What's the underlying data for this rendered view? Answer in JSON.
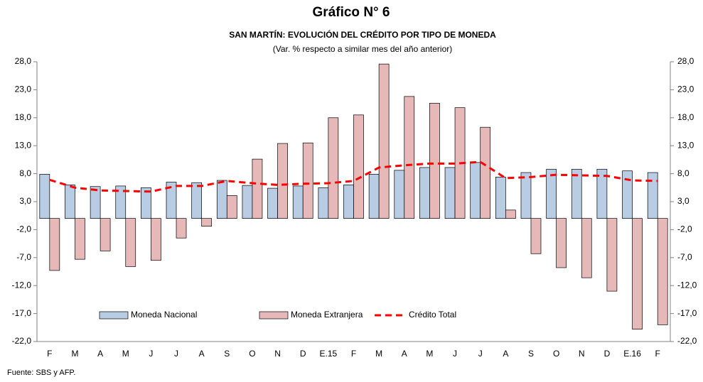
{
  "chart_data": {
    "type": "bar_line",
    "title": "Gráfico N° 6",
    "subtitle": "SAN MARTÍN: EVOLUCIÓN DEL CRÉDITO POR TIPO DE MONEDA",
    "note": "(Var. % respecto a similar mes del año anterior)",
    "source": "Fuente: SBS y AFP.",
    "categories": [
      "F",
      "M",
      "A",
      "M",
      "J",
      "J",
      "A",
      "S",
      "O",
      "N",
      "D",
      "E.15",
      "F",
      "M",
      "A",
      "M",
      "J",
      "J",
      "A",
      "S",
      "O",
      "N",
      "D",
      "E.16",
      "F"
    ],
    "series": [
      {
        "name": "Moneda Nacional",
        "type": "bar",
        "color": "#b8cce4",
        "values": [
          7.9,
          6.0,
          5.7,
          5.8,
          5.5,
          6.5,
          6.4,
          6.8,
          5.9,
          5.4,
          5.8,
          5.5,
          6.0,
          7.9,
          8.6,
          9.1,
          9.1,
          10.0,
          7.4,
          8.2,
          8.8,
          8.8,
          8.8,
          8.5,
          8.2
        ]
      },
      {
        "name": "Moneda Extranjera",
        "type": "bar",
        "color": "#e6b9b8",
        "values": [
          -9.3,
          -7.3,
          -5.8,
          -8.6,
          -7.5,
          -3.5,
          -1.4,
          4.1,
          10.6,
          13.4,
          13.5,
          18.0,
          18.5,
          27.6,
          21.8,
          20.6,
          19.8,
          16.3,
          1.5,
          -6.3,
          -8.8,
          -10.6,
          -13.0,
          -19.8,
          -19.0
        ]
      },
      {
        "name": "Crédito Total",
        "type": "line",
        "color": "#ff0000",
        "values": [
          6.9,
          5.5,
          5.0,
          4.9,
          4.8,
          5.8,
          5.8,
          6.7,
          6.3,
          6.0,
          6.2,
          6.3,
          6.7,
          9.1,
          9.5,
          9.8,
          9.8,
          10.1,
          7.2,
          7.4,
          7.8,
          7.7,
          7.6,
          6.8,
          6.7
        ]
      }
    ],
    "ylim": [
      -22,
      28
    ],
    "yticks": [
      {
        "value": -22,
        "label": "-22,0"
      },
      {
        "value": -17,
        "label": "-17,0"
      },
      {
        "value": -12,
        "label": "-12,0"
      },
      {
        "value": -7,
        "label": "-7,0"
      },
      {
        "value": -2,
        "label": "-2,0"
      },
      {
        "value": 3,
        "label": "3,0"
      },
      {
        "value": 8,
        "label": "8,0"
      },
      {
        "value": 13,
        "label": "13,0"
      },
      {
        "value": 18,
        "label": "18,0"
      },
      {
        "value": 23,
        "label": "23,0"
      },
      {
        "value": 28,
        "label": "28,0"
      }
    ],
    "y2lim": [
      -22,
      28
    ],
    "y2ticks": [
      {
        "value": -22,
        "label": "-22,0"
      },
      {
        "value": -17,
        "label": "-17,0"
      },
      {
        "value": -12,
        "label": "-12,0"
      },
      {
        "value": -7,
        "label": "-7,0"
      },
      {
        "value": -2,
        "label": "-2,0"
      },
      {
        "value": 3,
        "label": "3,0"
      },
      {
        "value": 8,
        "label": "8,0"
      },
      {
        "value": 13,
        "label": "13,0"
      },
      {
        "value": 18,
        "label": "18,0"
      },
      {
        "value": 23,
        "label": "23,0"
      },
      {
        "value": 28,
        "label": "28,0"
      }
    ],
    "legend": "lower center"
  }
}
